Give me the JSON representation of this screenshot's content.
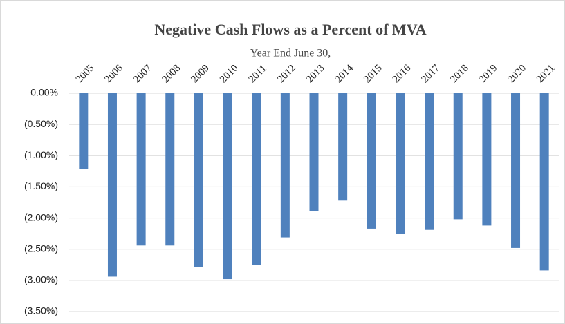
{
  "chart_data": {
    "type": "bar",
    "title": "Negative Cash Flows  as a Percent of MVA",
    "subtitle": "Year End June 30,",
    "categories": [
      "2005",
      "2006",
      "2007",
      "2008",
      "2009",
      "2010",
      "2011",
      "2012",
      "2013",
      "2014",
      "2015",
      "2016",
      "2017",
      "2018",
      "2019",
      "2020",
      "2021"
    ],
    "values": [
      -1.21,
      -2.94,
      -2.44,
      -2.44,
      -2.79,
      -2.98,
      -2.75,
      -2.31,
      -1.89,
      -1.72,
      -2.17,
      -2.25,
      -2.19,
      -2.02,
      -2.12,
      -2.48,
      -2.84
    ],
    "color": "#4f81bd",
    "ylim": [
      -3.5,
      0
    ],
    "yticks": [
      {
        "value": 0,
        "label": "0.00%"
      },
      {
        "value": -0.5,
        "label": "(0.50%)"
      },
      {
        "value": -1,
        "label": "(1.00%)"
      },
      {
        "value": -1.5,
        "label": "(1.50%)"
      },
      {
        "value": -2,
        "label": "(2.00%)"
      },
      {
        "value": -2.5,
        "label": "(2.50%)"
      },
      {
        "value": -3,
        "label": "(3.00%)"
      },
      {
        "value": -3.5,
        "label": "(3.50%)"
      }
    ],
    "grid": true
  }
}
